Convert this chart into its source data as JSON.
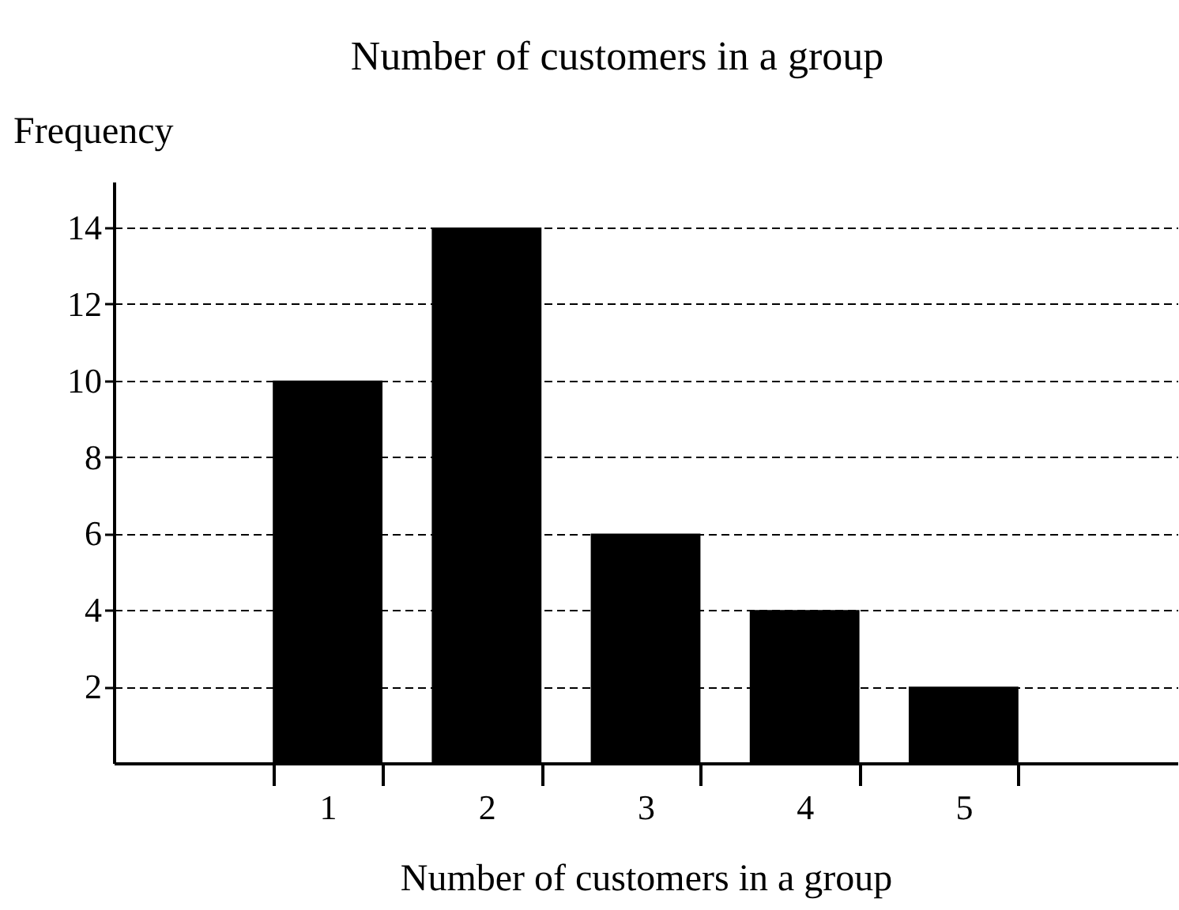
{
  "chart_data": {
    "type": "bar",
    "title": "Number of customers in a group",
    "xlabel": "Number of customers in a group",
    "ylabel": "Frequency",
    "categories": [
      "1",
      "2",
      "3",
      "4",
      "5"
    ],
    "values": [
      10,
      14,
      6,
      4,
      2
    ],
    "color": "#000000",
    "ylim": [
      0,
      15.2
    ],
    "yticks": [
      2,
      4,
      6,
      8,
      10,
      12,
      14
    ],
    "grid": "y"
  }
}
